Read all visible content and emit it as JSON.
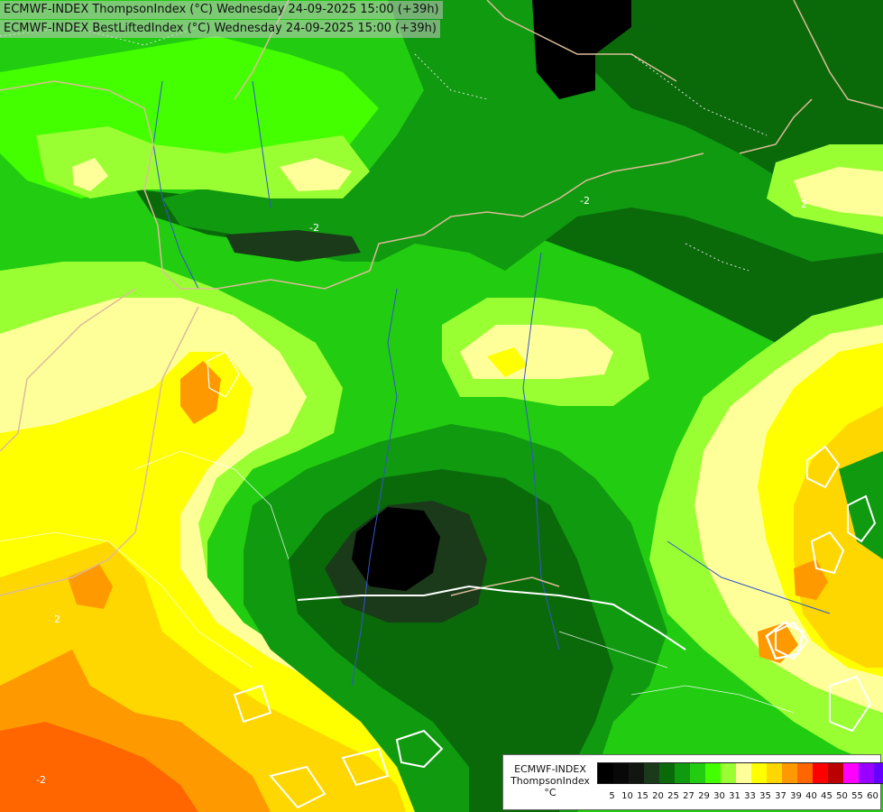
{
  "title_lines": [
    "ECMWF-INDEX ThompsonIndex (°C) Wednesday 24-09-2025 15:00 (+39h)",
    "ECMWF-INDEX BestLiftedIndex (°C) Wednesday 24-09-2025 15:00 (+39h)"
  ],
  "contour_labels": [
    "-2",
    "-2",
    "-2",
    "2",
    "2"
  ],
  "legend": {
    "line1": "ECMWF-INDEX",
    "line2": "ThompsonIndex",
    "unit": "°C",
    "ticks": [
      "5",
      "10",
      "15",
      "20",
      "25",
      "27",
      "29",
      "30",
      "31",
      "33",
      "35",
      "37",
      "39",
      "40",
      "45",
      "50",
      "55",
      "60"
    ],
    "colors": [
      "#000000",
      "#080808",
      "#111611",
      "#1a3a1a",
      "#0a6a0a",
      "#109a10",
      "#22cc11",
      "#44ff00",
      "#99ff33",
      "#ffff99",
      "#ffff00",
      "#ffd700",
      "#ff9900",
      "#ff6600",
      "#ff0000",
      "#bb0000",
      "#ff00ff",
      "#9900ff",
      "#6600ff",
      "#3300ff",
      "#0000ff"
    ]
  },
  "palette": {
    "dark_green": "#0a6a0a",
    "green": "#109a10",
    "bright_green": "#22cc11",
    "lime": "#44ff00",
    "light_lime": "#99ff33",
    "pale_yellow": "#ffff99",
    "yellow": "#ffff00",
    "gold": "#ffd700",
    "orange": "#ff9900",
    "dark_orange": "#ff6600",
    "black": "#000000",
    "border": "#ddbb99",
    "river": "#3355cc",
    "contour": "#ffffff"
  }
}
